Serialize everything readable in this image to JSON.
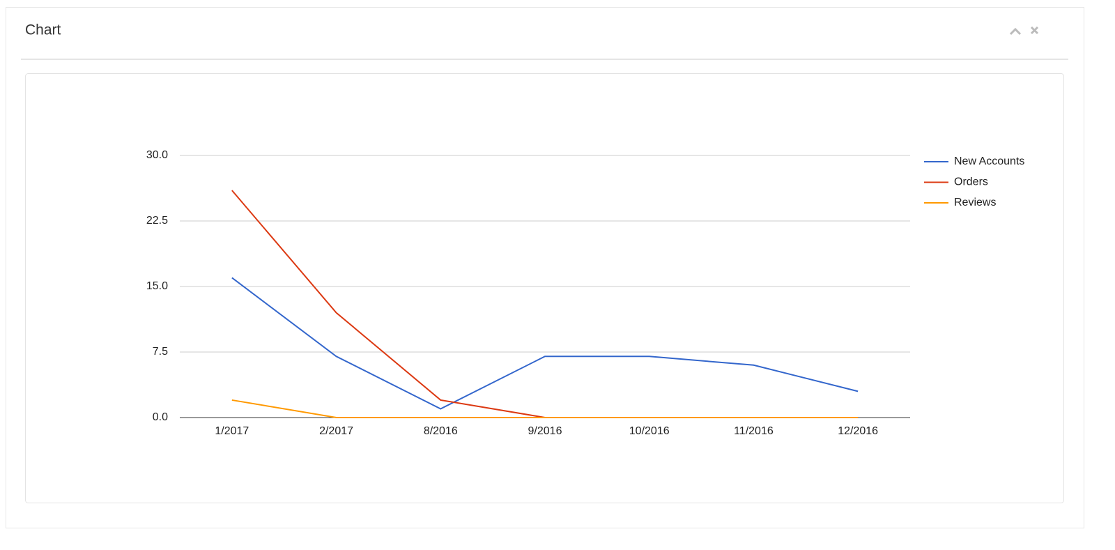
{
  "panel": {
    "title": "Chart"
  },
  "chart_data": {
    "type": "line",
    "categories": [
      "1/2017",
      "2/2017",
      "8/2016",
      "9/2016",
      "10/2016",
      "11/2016",
      "12/2016"
    ],
    "series": [
      {
        "name": "New Accounts",
        "color": "#3366cc",
        "values": [
          16,
          7,
          1,
          7,
          7,
          6,
          3
        ]
      },
      {
        "name": "Orders",
        "color": "#dc3912",
        "values": [
          26,
          12,
          2,
          0,
          0,
          0,
          0
        ]
      },
      {
        "name": "Reviews",
        "color": "#ff9900",
        "values": [
          2,
          0,
          0,
          0,
          0,
          0,
          0
        ]
      }
    ],
    "ylim": [
      0,
      30
    ],
    "yticks": [
      {
        "value": 0,
        "label": "0.0"
      },
      7.5,
      {
        "value": 15,
        "label": "15.0"
      },
      22.5,
      {
        "value": 30,
        "label": "30.0"
      }
    ],
    "grid": true,
    "legend": "right"
  }
}
